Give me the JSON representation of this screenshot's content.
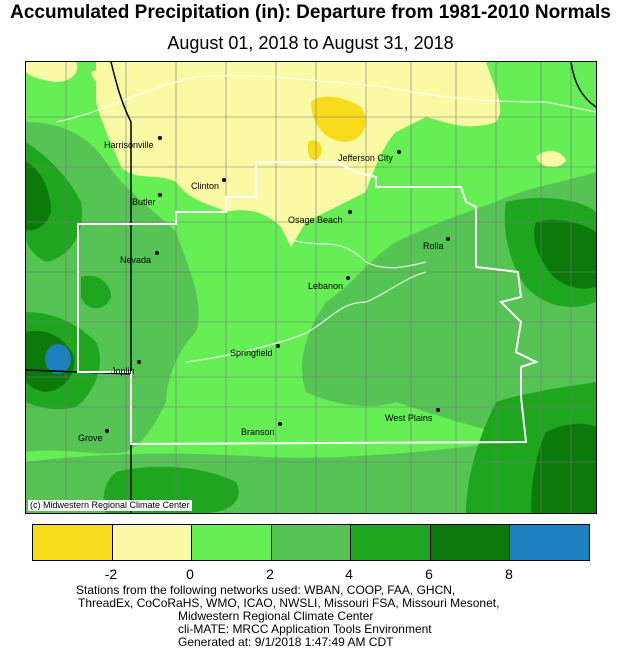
{
  "title": "Accumulated Precipitation (in): Departure from 1981-2010 Normals",
  "subtitle": "August 01, 2018 to August 31, 2018",
  "copyright": "(c) Midwestern Regional Climate Center",
  "cities": [
    {
      "name": "Harrisonville"
    },
    {
      "name": "Clinton"
    },
    {
      "name": "Butler"
    },
    {
      "name": "Jefferson City"
    },
    {
      "name": "Osage Beach"
    },
    {
      "name": "Rolla"
    },
    {
      "name": "Nevada"
    },
    {
      "name": "Lebanon"
    },
    {
      "name": "Springfield"
    },
    {
      "name": "Joplin"
    },
    {
      "name": "Grove"
    },
    {
      "name": "Branson"
    },
    {
      "name": "West Plains"
    }
  ],
  "legend": {
    "colors": [
      "#f8dc1c",
      "#fbfaa4",
      "#66ee55",
      "#55c455",
      "#1ea71e",
      "#0b7a0b",
      "#1c7fbf"
    ],
    "ticks": [
      "-2",
      "0",
      "2",
      "4",
      "6",
      "8"
    ]
  },
  "footer": {
    "line1": "Stations from the following networks used: WBAN, COOP, FAA, GHCN,",
    "line2": "ThreadEx, CoCoRaHS, WMO, ICAO, NWSLI, Missouri FSA, Missouri Mesonet,",
    "line3": "Midwestern Regional Climate Center",
    "line4": "cli-MATE: MRCC Application Tools Environment",
    "line5": "Generated at: 9/1/2018 1:47:49 AM CDT"
  }
}
